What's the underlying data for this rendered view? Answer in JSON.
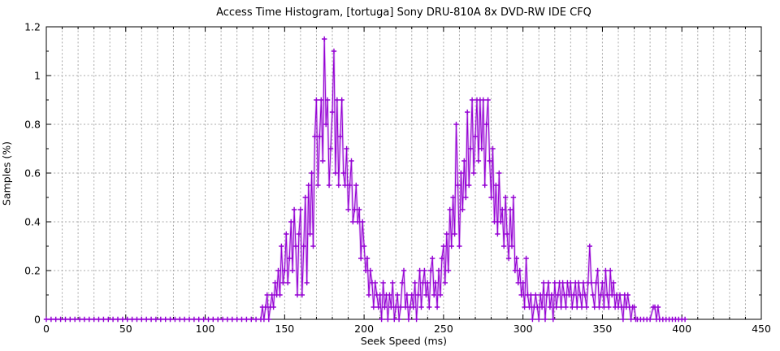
{
  "chart_data": {
    "type": "line",
    "title": "Access Time Histogram, [tortuga] Sony DRU-810A 8x DVD-RW IDE CFQ",
    "xlabel": "Seek Speed (ms)",
    "ylabel": "Samples (%)",
    "xlim": [
      0,
      450
    ],
    "ylim": [
      0,
      1.2
    ],
    "x_major_ticks": [
      0,
      50,
      100,
      150,
      200,
      250,
      300,
      350,
      400,
      450
    ],
    "x_major_labels": [
      "0",
      "50",
      "100",
      "150",
      "200",
      "250",
      "300",
      "350",
      "400",
      "450"
    ],
    "x_minor_step": 10,
    "y_major_ticks": [
      0,
      0.2,
      0.4,
      0.6,
      0.8,
      1,
      1.2
    ],
    "y_major_labels": [
      "0",
      "0.2",
      "0.4",
      "0.6",
      "0.8",
      "1",
      "1.2"
    ],
    "y_minor_step": 0.1,
    "grid": true,
    "legend": "none",
    "line_color": "#9400d3",
    "grid_color": "#a8a8a8",
    "border_color": "#000000",
    "marker": "plus",
    "points": [
      [
        0,
        0
      ],
      [
        3,
        0
      ],
      [
        6,
        0
      ],
      [
        9,
        0
      ],
      [
        12,
        0
      ],
      [
        15,
        0
      ],
      [
        18,
        0
      ],
      [
        21,
        0
      ],
      [
        24,
        0
      ],
      [
        27,
        0
      ],
      [
        30,
        0
      ],
      [
        33,
        0
      ],
      [
        36,
        0
      ],
      [
        39,
        0
      ],
      [
        42,
        0
      ],
      [
        45,
        0
      ],
      [
        48,
        0
      ],
      [
        51,
        0
      ],
      [
        54,
        0
      ],
      [
        57,
        0
      ],
      [
        60,
        0
      ],
      [
        63,
        0
      ],
      [
        66,
        0
      ],
      [
        69,
        0
      ],
      [
        72,
        0
      ],
      [
        75,
        0
      ],
      [
        78,
        0
      ],
      [
        81,
        0
      ],
      [
        84,
        0
      ],
      [
        87,
        0
      ],
      [
        90,
        0
      ],
      [
        93,
        0
      ],
      [
        96,
        0
      ],
      [
        99,
        0
      ],
      [
        102,
        0
      ],
      [
        105,
        0
      ],
      [
        108,
        0
      ],
      [
        111,
        0
      ],
      [
        114,
        0
      ],
      [
        117,
        0
      ],
      [
        120,
        0
      ],
      [
        123,
        0
      ],
      [
        126,
        0
      ],
      [
        129,
        0
      ],
      [
        132,
        0
      ],
      [
        135,
        0
      ],
      [
        136,
        0.05
      ],
      [
        137,
        0
      ],
      [
        138,
        0.05
      ],
      [
        139,
        0.1
      ],
      [
        140,
        0
      ],
      [
        141,
        0.05
      ],
      [
        142,
        0.1
      ],
      [
        143,
        0.05
      ],
      [
        144,
        0.15
      ],
      [
        145,
        0.1
      ],
      [
        146,
        0.2
      ],
      [
        147,
        0.1
      ],
      [
        148,
        0.3
      ],
      [
        149,
        0.15
      ],
      [
        150,
        0.2
      ],
      [
        151,
        0.35
      ],
      [
        152,
        0.15
      ],
      [
        153,
        0.25
      ],
      [
        154,
        0.4
      ],
      [
        155,
        0.2
      ],
      [
        156,
        0.45
      ],
      [
        157,
        0.3
      ],
      [
        158,
        0.1
      ],
      [
        159,
        0.35
      ],
      [
        160,
        0.45
      ],
      [
        161,
        0.1
      ],
      [
        162,
        0.3
      ],
      [
        163,
        0.5
      ],
      [
        164,
        0.15
      ],
      [
        165,
        0.55
      ],
      [
        166,
        0.35
      ],
      [
        167,
        0.6
      ],
      [
        168,
        0.3
      ],
      [
        169,
        0.75
      ],
      [
        170,
        0.9
      ],
      [
        171,
        0.55
      ],
      [
        172,
        0.75
      ],
      [
        173,
        0.9
      ],
      [
        174,
        0.65
      ],
      [
        175,
        1.15
      ],
      [
        176,
        0.8
      ],
      [
        177,
        0.9
      ],
      [
        178,
        0.55
      ],
      [
        179,
        0.7
      ],
      [
        180,
        0.85
      ],
      [
        181,
        1.1
      ],
      [
        182,
        0.6
      ],
      [
        183,
        0.9
      ],
      [
        184,
        0.55
      ],
      [
        185,
        0.75
      ],
      [
        186,
        0.9
      ],
      [
        187,
        0.6
      ],
      [
        188,
        0.55
      ],
      [
        189,
        0.7
      ],
      [
        190,
        0.45
      ],
      [
        191,
        0.55
      ],
      [
        192,
        0.65
      ],
      [
        193,
        0.4
      ],
      [
        194,
        0.45
      ],
      [
        195,
        0.55
      ],
      [
        196,
        0.4
      ],
      [
        197,
        0.45
      ],
      [
        198,
        0.25
      ],
      [
        199,
        0.4
      ],
      [
        200,
        0.3
      ],
      [
        201,
        0.2
      ],
      [
        202,
        0.25
      ],
      [
        203,
        0.1
      ],
      [
        204,
        0.2
      ],
      [
        205,
        0.15
      ],
      [
        206,
        0.05
      ],
      [
        207,
        0.15
      ],
      [
        208,
        0.1
      ],
      [
        209,
        0.05
      ],
      [
        210,
        0.1
      ],
      [
        211,
        0
      ],
      [
        212,
        0.15
      ],
      [
        213,
        0.05
      ],
      [
        214,
        0.1
      ],
      [
        215,
        0
      ],
      [
        216,
        0.1
      ],
      [
        217,
        0.05
      ],
      [
        218,
        0.15
      ],
      [
        219,
        0
      ],
      [
        220,
        0.05
      ],
      [
        221,
        0.1
      ],
      [
        222,
        0
      ],
      [
        223,
        0.05
      ],
      [
        224,
        0.15
      ],
      [
        225,
        0.2
      ],
      [
        226,
        0.05
      ],
      [
        227,
        0.1
      ],
      [
        228,
        0
      ],
      [
        229,
        0.05
      ],
      [
        230,
        0.1
      ],
      [
        231,
        0.05
      ],
      [
        232,
        0.15
      ],
      [
        233,
        0
      ],
      [
        234,
        0.1
      ],
      [
        235,
        0.2
      ],
      [
        236,
        0.05
      ],
      [
        237,
        0.15
      ],
      [
        238,
        0.2
      ],
      [
        239,
        0.1
      ],
      [
        240,
        0.15
      ],
      [
        241,
        0.05
      ],
      [
        242,
        0.2
      ],
      [
        243,
        0.25
      ],
      [
        244,
        0.1
      ],
      [
        245,
        0.15
      ],
      [
        246,
        0.05
      ],
      [
        247,
        0.2
      ],
      [
        248,
        0.1
      ],
      [
        249,
        0.25
      ],
      [
        250,
        0.3
      ],
      [
        251,
        0.15
      ],
      [
        252,
        0.35
      ],
      [
        253,
        0.2
      ],
      [
        254,
        0.45
      ],
      [
        255,
        0.3
      ],
      [
        256,
        0.5
      ],
      [
        257,
        0.35
      ],
      [
        258,
        0.8
      ],
      [
        259,
        0.55
      ],
      [
        260,
        0.3
      ],
      [
        261,
        0.6
      ],
      [
        262,
        0.45
      ],
      [
        263,
        0.65
      ],
      [
        264,
        0.5
      ],
      [
        265,
        0.85
      ],
      [
        266,
        0.55
      ],
      [
        267,
        0.7
      ],
      [
        268,
        0.9
      ],
      [
        269,
        0.6
      ],
      [
        270,
        0.75
      ],
      [
        271,
        0.9
      ],
      [
        272,
        0.65
      ],
      [
        273,
        0.9
      ],
      [
        274,
        0.7
      ],
      [
        275,
        0.9
      ],
      [
        276,
        0.55
      ],
      [
        277,
        0.8
      ],
      [
        278,
        0.9
      ],
      [
        279,
        0.65
      ],
      [
        280,
        0.5
      ],
      [
        281,
        0.7
      ],
      [
        282,
        0.4
      ],
      [
        283,
        0.55
      ],
      [
        284,
        0.35
      ],
      [
        285,
        0.6
      ],
      [
        286,
        0.4
      ],
      [
        287,
        0.45
      ],
      [
        288,
        0.3
      ],
      [
        289,
        0.5
      ],
      [
        290,
        0.35
      ],
      [
        291,
        0.25
      ],
      [
        292,
        0.45
      ],
      [
        293,
        0.3
      ],
      [
        294,
        0.5
      ],
      [
        295,
        0.2
      ],
      [
        296,
        0.25
      ],
      [
        297,
        0.15
      ],
      [
        298,
        0.2
      ],
      [
        299,
        0.1
      ],
      [
        300,
        0.15
      ],
      [
        301,
        0.05
      ],
      [
        302,
        0.25
      ],
      [
        303,
        0.1
      ],
      [
        304,
        0.05
      ],
      [
        305,
        0.1
      ],
      [
        306,
        0
      ],
      [
        307,
        0.05
      ],
      [
        308,
        0.1
      ],
      [
        309,
        0.05
      ],
      [
        310,
        0
      ],
      [
        311,
        0.1
      ],
      [
        312,
        0.05
      ],
      [
        313,
        0.15
      ],
      [
        314,
        0
      ],
      [
        315,
        0.1
      ],
      [
        316,
        0.15
      ],
      [
        317,
        0.05
      ],
      [
        318,
        0.1
      ],
      [
        319,
        0
      ],
      [
        320,
        0.15
      ],
      [
        321,
        0.05
      ],
      [
        322,
        0.1
      ],
      [
        323,
        0.15
      ],
      [
        324,
        0.05
      ],
      [
        325,
        0.15
      ],
      [
        326,
        0.1
      ],
      [
        327,
        0.05
      ],
      [
        328,
        0.15
      ],
      [
        329,
        0.1
      ],
      [
        330,
        0.15
      ],
      [
        331,
        0.05
      ],
      [
        332,
        0.1
      ],
      [
        333,
        0.15
      ],
      [
        334,
        0.05
      ],
      [
        335,
        0.15
      ],
      [
        336,
        0.1
      ],
      [
        337,
        0.05
      ],
      [
        338,
        0.15
      ],
      [
        339,
        0.1
      ],
      [
        340,
        0.05
      ],
      [
        341,
        0.15
      ],
      [
        342,
        0.3
      ],
      [
        343,
        0.15
      ],
      [
        344,
        0.1
      ],
      [
        345,
        0.05
      ],
      [
        346,
        0.15
      ],
      [
        347,
        0.2
      ],
      [
        348,
        0.05
      ],
      [
        349,
        0.1
      ],
      [
        350,
        0.15
      ],
      [
        351,
        0.05
      ],
      [
        352,
        0.2
      ],
      [
        353,
        0.1
      ],
      [
        354,
        0.05
      ],
      [
        355,
        0.2
      ],
      [
        356,
        0.1
      ],
      [
        357,
        0.15
      ],
      [
        358,
        0.05
      ],
      [
        359,
        0.1
      ],
      [
        360,
        0.05
      ],
      [
        361,
        0.1
      ],
      [
        362,
        0.05
      ],
      [
        363,
        0
      ],
      [
        364,
        0.1
      ],
      [
        365,
        0.05
      ],
      [
        366,
        0.1
      ],
      [
        367,
        0.05
      ],
      [
        368,
        0
      ],
      [
        369,
        0.05
      ],
      [
        370,
        0.05
      ],
      [
        371,
        0
      ],
      [
        372,
        0
      ],
      [
        374,
        0
      ],
      [
        376,
        0
      ],
      [
        378,
        0
      ],
      [
        380,
        0
      ],
      [
        382,
        0.05
      ],
      [
        383,
        0.05
      ],
      [
        384,
        0
      ],
      [
        385,
        0.05
      ],
      [
        386,
        0
      ],
      [
        388,
        0
      ],
      [
        390,
        0
      ],
      [
        392,
        0
      ],
      [
        394,
        0
      ],
      [
        396,
        0
      ],
      [
        398,
        0
      ],
      [
        400,
        0
      ],
      [
        402,
        0
      ]
    ]
  }
}
